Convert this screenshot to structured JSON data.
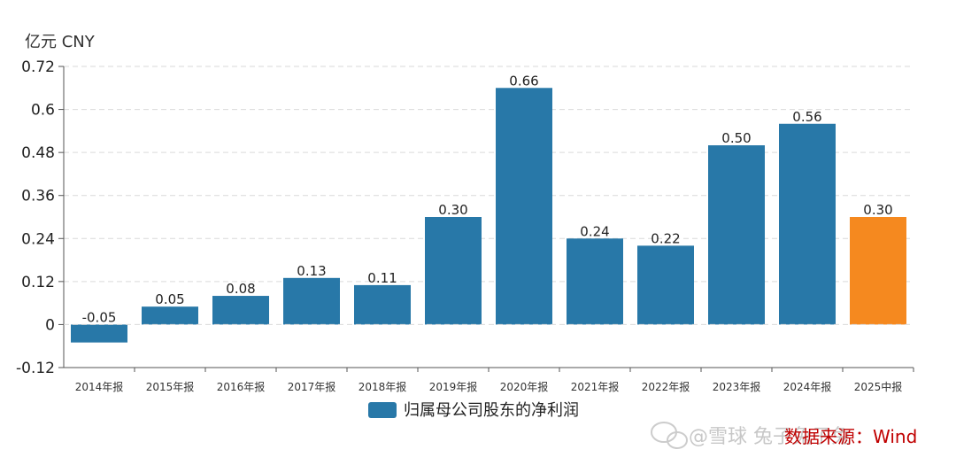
{
  "unit_label": "亿元  CNY",
  "legend": {
    "label": "归属母公司股东的净利润",
    "color": "#2878a8"
  },
  "source": {
    "text": "数据来源：Wind"
  },
  "watermark": {
    "text": "@雪球 兔子兔子兔"
  },
  "colors": {
    "primary": "#2878a8",
    "highlight": "#f5891f",
    "grid": "#d9d9d9",
    "axis": "#555555"
  },
  "chart_data": {
    "type": "bar",
    "categories": [
      "2014年报",
      "2015年报",
      "2016年报",
      "2017年报",
      "2018年报",
      "2019年报",
      "2020年报",
      "2021年报",
      "2022年报",
      "2023年报",
      "2024年报",
      "2025中报"
    ],
    "values": [
      -0.05,
      0.05,
      0.08,
      0.13,
      0.11,
      0.3,
      0.66,
      0.24,
      0.22,
      0.5,
      0.56,
      0.3
    ],
    "data_labels": [
      "-0.05",
      "0.05",
      "0.08",
      "0.13",
      "0.11",
      "0.30",
      "0.66",
      "0.24",
      "0.22",
      "0.50",
      "0.56",
      "0.30"
    ],
    "highlight_index": 11,
    "ylim": [
      -0.12,
      0.72
    ],
    "yticks": [
      -0.12,
      0,
      0.12,
      0.24,
      0.36,
      0.48,
      0.6,
      0.72
    ],
    "ytick_labels": [
      "-0.12",
      "0",
      "0.12",
      "0.24",
      "0.36",
      "0.48",
      "0.6",
      "0.72"
    ],
    "grid": true,
    "legend_position": "bottom-center"
  }
}
